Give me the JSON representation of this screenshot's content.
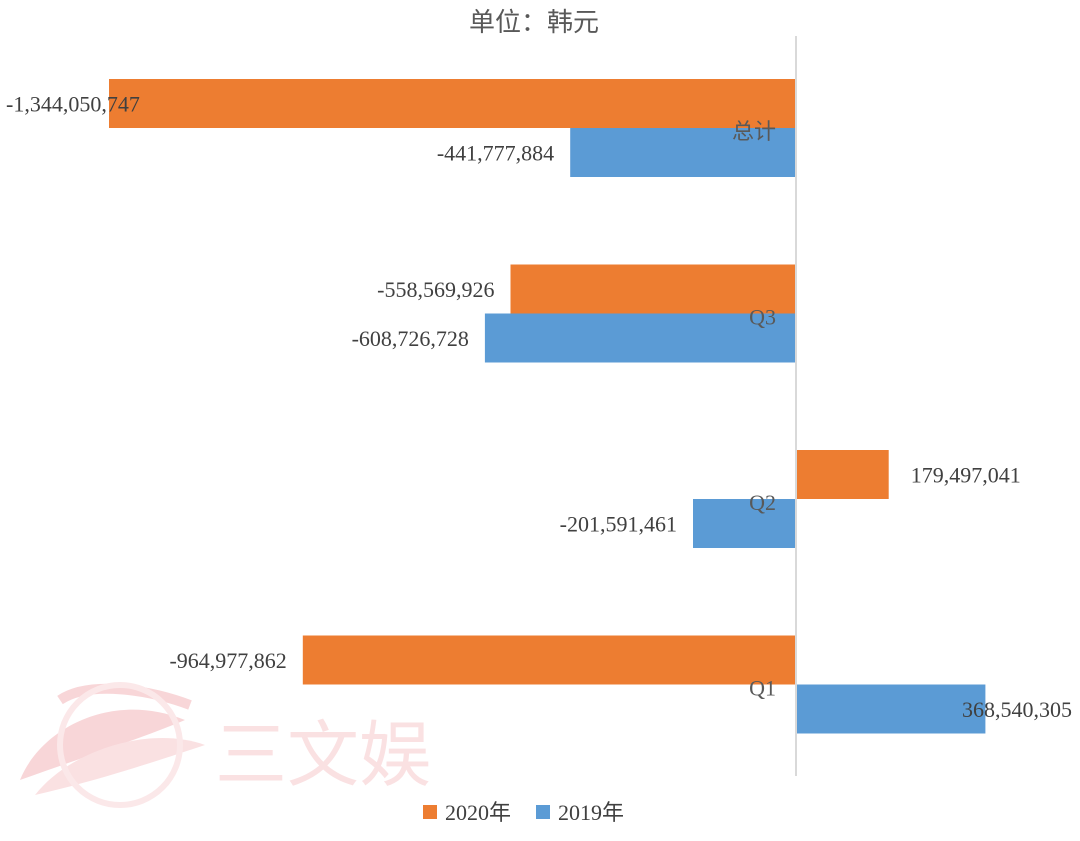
{
  "watermark": {
    "text": "三文娱"
  },
  "chart_data": {
    "type": "bar",
    "orientation": "horizontal",
    "title": "单位：韩元",
    "categories": [
      "总计",
      "Q3",
      "Q2",
      "Q1"
    ],
    "series": [
      {
        "name": "2020年",
        "color": "#ED7D31",
        "values": [
          -1344050747,
          -558569926,
          179497041,
          -964977862
        ]
      },
      {
        "name": "2019年",
        "color": "#5B9BD5",
        "values": [
          -441777884,
          -608726728,
          -201591461,
          368540305
        ]
      }
    ],
    "data_labels": {
      "2020年": [
        "-1,344,050,747",
        "-558,569,926",
        "179,497,041",
        "-964,977,862"
      ],
      "2019年": [
        "-441,777,884",
        "-608,726,728",
        "-201,591,461",
        "368,540,305"
      ]
    },
    "grid": false,
    "legend_position": "bottom",
    "axis_color": "#D9D9D9"
  }
}
